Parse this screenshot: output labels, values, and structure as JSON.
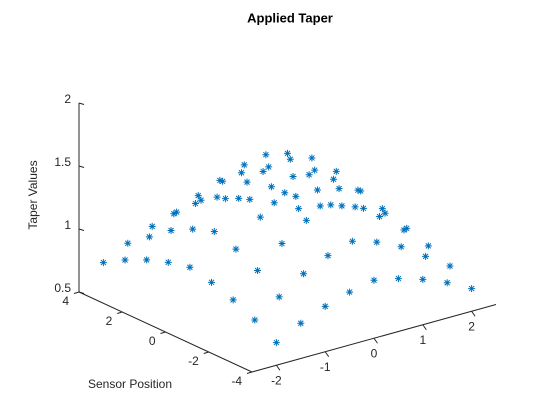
{
  "chart_data": {
    "type": "scatter3",
    "title": "Applied Taper",
    "ylabel": "Sensor Position",
    "zlabel": "Taper Values",
    "color": "#0072bd",
    "xlim": [
      -2.5,
      2.5
    ],
    "ylim": [
      -4,
      4
    ],
    "zlim": [
      0.5,
      2
    ],
    "xticks": [
      -2,
      -1,
      0,
      1,
      2
    ],
    "yticks": [
      -4,
      -2,
      0,
      2,
      4
    ],
    "zticks": [
      0.5,
      1,
      1.5,
      2
    ],
    "x": [
      -2,
      -1.5,
      -1,
      -0.5,
      0,
      0.5,
      1,
      1.5,
      2,
      -2,
      -1.5,
      -1,
      -0.5,
      0,
      0.5,
      1,
      1.5,
      2,
      -2,
      -1.5,
      -1,
      -0.5,
      0,
      0.5,
      1,
      1.5,
      2,
      -2,
      -1.5,
      -1,
      -0.5,
      0,
      0.5,
      1,
      1.5,
      2,
      -2,
      -1.5,
      -1,
      -0.5,
      0,
      0.5,
      1,
      1.5,
      2,
      -2,
      -1.5,
      -1,
      -0.5,
      0,
      0.5,
      1,
      1.5,
      2,
      -2,
      -1.5,
      -1,
      -0.5,
      0,
      0.5,
      1,
      1.5,
      2,
      -2,
      -1.5,
      -1,
      -0.5,
      0,
      0.5,
      1,
      1.5,
      2,
      -2,
      -1.5,
      -1,
      -0.5,
      0,
      0.5,
      1,
      1.5,
      2
    ],
    "y": [
      -4,
      -4,
      -4,
      -4,
      -4,
      -4,
      -4,
      -4,
      -4,
      -3,
      -3,
      -3,
      -3,
      -3,
      -3,
      -3,
      -3,
      -3,
      -2,
      -2,
      -2,
      -2,
      -2,
      -2,
      -2,
      -2,
      -2,
      -1,
      -1,
      -1,
      -1,
      -1,
      -1,
      -1,
      -1,
      -1,
      0,
      0,
      0,
      0,
      0,
      0,
      0,
      0,
      0,
      1,
      1,
      1,
      1,
      1,
      1,
      1,
      1,
      1,
      2,
      2,
      2,
      2,
      2,
      2,
      2,
      2,
      2,
      3,
      3,
      3,
      3,
      3,
      3,
      3,
      3,
      3,
      4,
      4,
      4,
      4,
      4,
      4,
      4,
      4,
      4
    ],
    "z": [
      0.68,
      0.78,
      0.86,
      0.92,
      0.96,
      0.92,
      0.86,
      0.78,
      0.68,
      0.78,
      0.91,
      1.04,
      1.13,
      1.19,
      1.13,
      1.04,
      0.91,
      0.78,
      0.86,
      1.04,
      1.2,
      1.33,
      1.4,
      1.33,
      1.2,
      1.04,
      0.86,
      0.92,
      1.13,
      1.33,
      1.47,
      1.56,
      1.47,
      1.33,
      1.13,
      0.92,
      0.96,
      1.19,
      1.4,
      1.56,
      1.65,
      1.56,
      1.4,
      1.19,
      0.96,
      0.92,
      1.13,
      1.33,
      1.47,
      1.56,
      1.47,
      1.33,
      1.13,
      0.92,
      0.86,
      1.04,
      1.2,
      1.33,
      1.4,
      1.33,
      1.2,
      1.04,
      0.86,
      0.78,
      0.91,
      1.04,
      1.13,
      1.19,
      1.13,
      1.04,
      0.91,
      0.78,
      0.68,
      0.78,
      0.86,
      0.92,
      0.96,
      0.92,
      0.86,
      0.78,
      0.68
    ]
  }
}
